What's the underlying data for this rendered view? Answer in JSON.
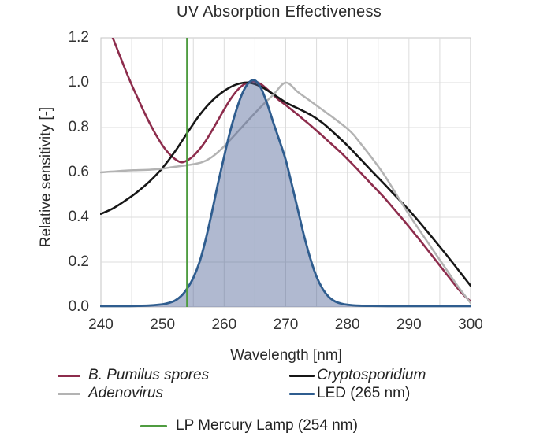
{
  "title": "UV Absorption Effectiveness",
  "axes": {
    "x_label": "Wavelength [nm]",
    "y_label": "Relative sensitivity [-]",
    "x_ticks": [
      240,
      250,
      260,
      270,
      280,
      290,
      300
    ],
    "y_ticks": [
      "0.0",
      "0.2",
      "0.4",
      "0.6",
      "0.8",
      "1.0",
      "1.2"
    ]
  },
  "legend": {
    "items": [
      {
        "label": "B. Pumilus spores",
        "color": "#8d2c4c",
        "italic": true,
        "slot": "left-0"
      },
      {
        "label": "Cryptosporidium",
        "color": "#161616",
        "italic": true,
        "slot": "right-0"
      },
      {
        "label": "Adenovirus",
        "color": "#b3b3b3",
        "italic": true,
        "slot": "left-1"
      },
      {
        "label": "LED (265 nm)",
        "color": "#2f5d8f",
        "italic": false,
        "slot": "right-1"
      },
      {
        "label": "LP Mercury Lamp (254 nm)",
        "color": "#4f9c40",
        "italic": false,
        "slot": "bottom"
      }
    ]
  },
  "colors": {
    "grid": "#dcdcdc",
    "plot_border": "#c4c4c4",
    "led_fill": "rgba(80,100,150,0.45)"
  },
  "chart_data": {
    "type": "line",
    "title": "UV Absorption Effectiveness",
    "xlabel": "Wavelength [nm]",
    "ylabel": "Relative sensitivity [-]",
    "xlim": [
      240,
      300
    ],
    "ylim": [
      0,
      1.2
    ],
    "grid": true,
    "x_grid_step": 5,
    "y_grid_step": 0.2,
    "legend_position": "bottom",
    "series": [
      {
        "name": "B. Pumilus spores",
        "color": "#8d2c4c",
        "kind": "line",
        "width": 2.6,
        "points": [
          [
            240,
            1.33
          ],
          [
            241,
            1.26
          ],
          [
            242,
            1.195
          ],
          [
            243,
            1.125
          ],
          [
            244,
            1.055
          ],
          [
            245,
            0.99
          ],
          [
            246,
            0.93
          ],
          [
            247,
            0.87
          ],
          [
            248,
            0.815
          ],
          [
            249,
            0.765
          ],
          [
            250,
            0.72
          ],
          [
            251,
            0.685
          ],
          [
            252,
            0.66
          ],
          [
            253,
            0.645
          ],
          [
            254,
            0.653
          ],
          [
            255,
            0.673
          ],
          [
            256,
            0.703
          ],
          [
            257,
            0.74
          ],
          [
            258,
            0.785
          ],
          [
            259,
            0.832
          ],
          [
            260,
            0.88
          ],
          [
            261,
            0.925
          ],
          [
            262,
            0.962
          ],
          [
            263,
            0.988
          ],
          [
            264,
            1.002
          ],
          [
            265,
            1.005
          ],
          [
            266,
            0.993
          ],
          [
            267,
            0.97
          ],
          [
            268,
            0.945
          ],
          [
            269,
            0.92
          ],
          [
            270,
            0.9
          ],
          [
            271,
            0.878
          ],
          [
            272,
            0.856
          ],
          [
            273,
            0.833
          ],
          [
            274,
            0.81
          ],
          [
            275,
            0.786
          ],
          [
            276,
            0.762
          ],
          [
            277,
            0.737
          ],
          [
            278,
            0.712
          ],
          [
            279,
            0.687
          ],
          [
            280,
            0.66
          ],
          [
            281,
            0.632
          ],
          [
            282,
            0.603
          ],
          [
            283,
            0.574
          ],
          [
            284,
            0.545
          ],
          [
            285,
            0.516
          ],
          [
            286,
            0.487
          ],
          [
            287,
            0.455
          ],
          [
            288,
            0.423
          ],
          [
            289,
            0.391
          ],
          [
            290,
            0.358
          ],
          [
            291,
            0.324
          ],
          [
            292,
            0.29
          ],
          [
            293,
            0.255
          ],
          [
            294,
            0.22
          ],
          [
            295,
            0.185
          ],
          [
            296,
            0.15
          ],
          [
            297,
            0.115
          ],
          [
            298,
            0.08
          ],
          [
            299,
            0.05
          ],
          [
            300,
            0.025
          ]
        ]
      },
      {
        "name": "Cryptosporidium",
        "color": "#161616",
        "kind": "line",
        "width": 2.6,
        "points": [
          [
            240,
            0.415
          ],
          [
            242,
            0.44
          ],
          [
            244,
            0.475
          ],
          [
            246,
            0.515
          ],
          [
            248,
            0.562
          ],
          [
            250,
            0.62
          ],
          [
            252,
            0.692
          ],
          [
            254,
            0.775
          ],
          [
            256,
            0.855
          ],
          [
            258,
            0.918
          ],
          [
            260,
            0.963
          ],
          [
            262,
            0.992
          ],
          [
            264,
            1.0
          ],
          [
            266,
            0.982
          ],
          [
            268,
            0.948
          ],
          [
            270,
            0.912
          ],
          [
            272,
            0.885
          ],
          [
            274,
            0.857
          ],
          [
            276,
            0.82
          ],
          [
            278,
            0.772
          ],
          [
            280,
            0.72
          ],
          [
            282,
            0.663
          ],
          [
            284,
            0.605
          ],
          [
            286,
            0.548
          ],
          [
            288,
            0.49
          ],
          [
            290,
            0.432
          ],
          [
            292,
            0.368
          ],
          [
            294,
            0.302
          ],
          [
            296,
            0.235
          ],
          [
            298,
            0.165
          ],
          [
            300,
            0.095
          ]
        ]
      },
      {
        "name": "Adenovirus",
        "color": "#b3b3b3",
        "kind": "line",
        "width": 2.5,
        "points": [
          [
            240,
            0.6
          ],
          [
            242,
            0.604
          ],
          [
            244,
            0.608
          ],
          [
            246,
            0.61
          ],
          [
            248,
            0.612
          ],
          [
            250,
            0.617
          ],
          [
            252,
            0.625
          ],
          [
            254,
            0.632
          ],
          [
            256,
            0.642
          ],
          [
            257,
            0.652
          ],
          [
            258,
            0.668
          ],
          [
            259,
            0.69
          ],
          [
            260,
            0.716
          ],
          [
            262,
            0.775
          ],
          [
            264,
            0.835
          ],
          [
            266,
            0.893
          ],
          [
            268,
            0.947
          ],
          [
            270,
            1.0
          ],
          [
            272,
            0.958
          ],
          [
            274,
            0.918
          ],
          [
            276,
            0.878
          ],
          [
            278,
            0.838
          ],
          [
            280,
            0.795
          ],
          [
            281,
            0.768
          ],
          [
            282,
            0.734
          ],
          [
            284,
            0.664
          ],
          [
            286,
            0.588
          ],
          [
            288,
            0.5
          ],
          [
            290,
            0.412
          ],
          [
            292,
            0.33
          ],
          [
            294,
            0.25
          ],
          [
            296,
            0.17
          ],
          [
            298,
            0.09
          ],
          [
            300,
            0.018
          ]
        ]
      },
      {
        "name": "LED (265 nm)",
        "color": "#2f5d8f",
        "kind": "area",
        "width": 2.8,
        "fill": "rgba(80,100,150,0.45)",
        "points": [
          [
            240,
            0.004
          ],
          [
            244,
            0.004
          ],
          [
            246,
            0.005
          ],
          [
            248,
            0.007
          ],
          [
            250,
            0.012
          ],
          [
            251,
            0.018
          ],
          [
            252,
            0.028
          ],
          [
            253,
            0.048
          ],
          [
            254,
            0.082
          ],
          [
            255,
            0.13
          ],
          [
            256,
            0.2
          ],
          [
            257,
            0.3
          ],
          [
            258,
            0.42
          ],
          [
            259,
            0.55
          ],
          [
            260,
            0.67
          ],
          [
            261,
            0.785
          ],
          [
            262,
            0.88
          ],
          [
            263,
            0.955
          ],
          [
            264,
            1.0
          ],
          [
            265,
            1.01
          ],
          [
            266,
            0.975
          ],
          [
            267,
            0.905
          ],
          [
            268,
            0.82
          ],
          [
            269,
            0.74
          ],
          [
            270,
            0.655
          ],
          [
            271,
            0.545
          ],
          [
            272,
            0.43
          ],
          [
            273,
            0.315
          ],
          [
            274,
            0.215
          ],
          [
            275,
            0.135
          ],
          [
            276,
            0.08
          ],
          [
            277,
            0.045
          ],
          [
            278,
            0.025
          ],
          [
            279,
            0.015
          ],
          [
            280,
            0.01
          ],
          [
            282,
            0.006
          ],
          [
            284,
            0.005
          ],
          [
            288,
            0.004
          ],
          [
            292,
            0.004
          ],
          [
            296,
            0.004
          ],
          [
            300,
            0.004
          ]
        ]
      },
      {
        "name": "LP Mercury Lamp (254 nm)",
        "color": "#4f9c40",
        "kind": "vline",
        "width": 2.6,
        "x": 254
      }
    ]
  }
}
